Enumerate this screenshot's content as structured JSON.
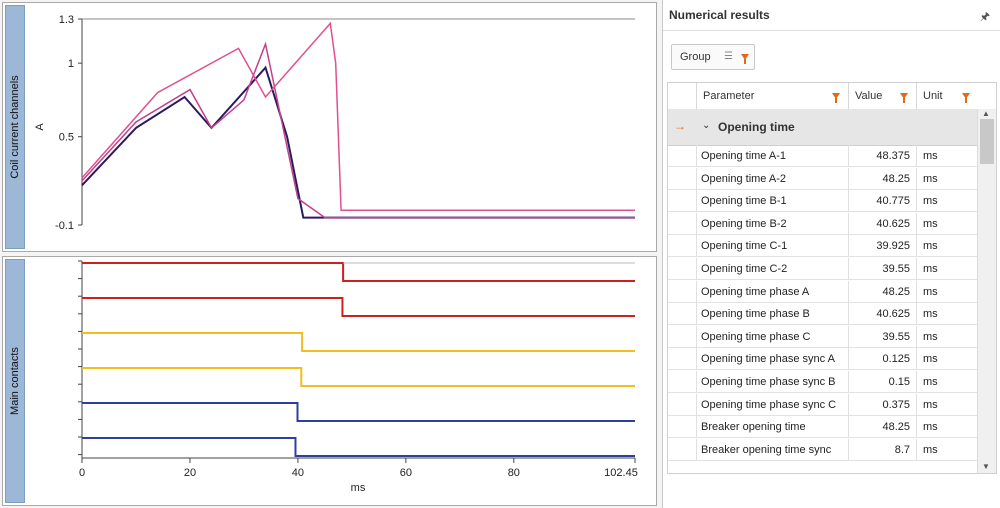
{
  "left": {
    "coil_panel": {
      "title": "Coil current channels",
      "y_unit": "A",
      "y_ticks": [
        "1.3",
        "1",
        "0.5",
        "-0.1"
      ]
    },
    "contacts_panel": {
      "title": "Main contacts",
      "x_ticks": [
        "0",
        "20",
        "40",
        "60",
        "80",
        "102.45"
      ],
      "x_label": "ms"
    }
  },
  "chart_data": [
    {
      "type": "line",
      "title": "Coil current channels",
      "ylabel": "A",
      "ylim": [
        -0.1,
        1.3
      ],
      "xlim": [
        0,
        102.45
      ],
      "series": [
        {
          "color": "#2b1a5e",
          "x": [
            0,
            10,
            19,
            24,
            34,
            38,
            41,
            43,
            102.45
          ],
          "y": [
            0.17,
            0.56,
            0.77,
            0.56,
            0.97,
            0.5,
            -0.05,
            -0.05,
            -0.05
          ]
        },
        {
          "color": "#c4408a",
          "x": [
            0,
            10,
            20,
            24,
            30,
            34,
            40,
            45,
            102.45
          ],
          "y": [
            0.2,
            0.6,
            0.82,
            0.56,
            0.75,
            1.13,
            0.08,
            -0.05,
            -0.05
          ]
        },
        {
          "color": "#e0508e",
          "x": [
            0,
            14,
            29,
            34,
            46,
            47,
            48,
            102.45
          ],
          "y": [
            0.22,
            0.8,
            1.1,
            0.77,
            1.27,
            1.0,
            0.0,
            0.0
          ]
        }
      ]
    },
    {
      "type": "line",
      "title": "Main contacts",
      "xlabel": "ms",
      "xlim": [
        0,
        102.45
      ],
      "series": [
        {
          "color": "#cc1f1f",
          "switch_ms": 48.375
        },
        {
          "color": "#cc1f1f",
          "switch_ms": 48.25
        },
        {
          "color": "#f2bd1d",
          "switch_ms": 40.775
        },
        {
          "color": "#f2bd1d",
          "switch_ms": 40.625
        },
        {
          "color": "#2e3f9c",
          "switch_ms": 39.925
        },
        {
          "color": "#2e3f9c",
          "switch_ms": 39.55
        }
      ]
    }
  ],
  "results": {
    "title": "Numerical results",
    "pin_icon": "pin-icon",
    "group_label": "Group",
    "columns": [
      "Parameter",
      "Value",
      "Unit"
    ],
    "group_title": "Opening time",
    "rows": [
      {
        "parameter": "Opening time A-1",
        "value": "48.375",
        "unit": "ms"
      },
      {
        "parameter": "Opening time A-2",
        "value": "48.25",
        "unit": "ms"
      },
      {
        "parameter": "Opening time B-1",
        "value": "40.775",
        "unit": "ms"
      },
      {
        "parameter": "Opening time B-2",
        "value": "40.625",
        "unit": "ms"
      },
      {
        "parameter": "Opening time C-1",
        "value": "39.925",
        "unit": "ms"
      },
      {
        "parameter": "Opening time C-2",
        "value": "39.55",
        "unit": "ms"
      },
      {
        "parameter": "Opening time phase A",
        "value": "48.25",
        "unit": "ms"
      },
      {
        "parameter": "Opening time phase B",
        "value": "40.625",
        "unit": "ms"
      },
      {
        "parameter": "Opening time phase C",
        "value": "39.55",
        "unit": "ms"
      },
      {
        "parameter": "Opening time phase sync A",
        "value": "0.125",
        "unit": "ms"
      },
      {
        "parameter": "Opening time phase sync B",
        "value": "0.15",
        "unit": "ms"
      },
      {
        "parameter": "Opening time phase sync C",
        "value": "0.375",
        "unit": "ms"
      },
      {
        "parameter": "Breaker opening time",
        "value": "48.25",
        "unit": "ms"
      },
      {
        "parameter": "Breaker opening time sync",
        "value": "8.7",
        "unit": "ms"
      }
    ]
  }
}
